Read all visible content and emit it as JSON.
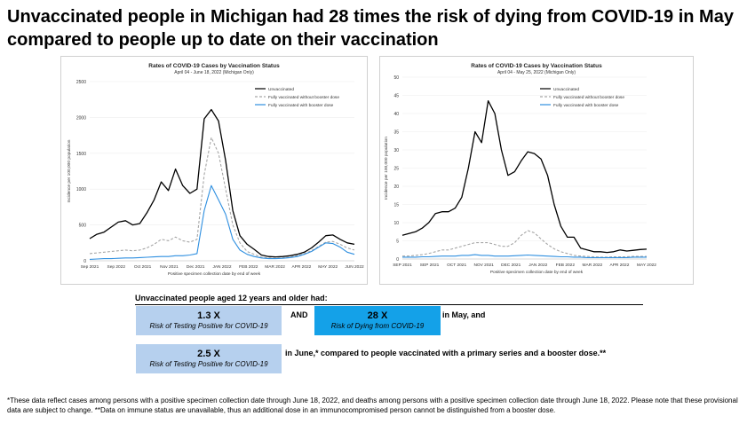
{
  "title": "Unvaccinated people in Michigan had 28 times the risk of dying from COVID-19 in May compared to people up to date on their vaccination",
  "colors": {
    "unvax": "#000000",
    "no_booster": "#a6a6a6",
    "booster": "#2e8fe0",
    "box_light": "#b6d0ee",
    "box_dark": "#14a1e8"
  },
  "chart_data": [
    {
      "type": "line",
      "title": "Rates of COVID-19 Cases by Vaccination Status",
      "subtitle": "April 04 - June 18, 2022 (Michigan Only)",
      "xlabel": "Positive specimen collection date by end of week",
      "ylabel": "Incidence per 100,000 population",
      "ylim": [
        0,
        2500
      ],
      "yticks": [
        "0",
        "500",
        "1000",
        "1500",
        "2000",
        "2500"
      ],
      "xtick_labels": [
        "Sep 2021",
        "Sep 2022",
        "Oct 2021",
        "Nov 2021",
        "Dec 2021",
        "JAN 2022",
        "FEB 2022",
        "MAR 2022",
        "APR 2022",
        "MAY 2022",
        "JUN 2022"
      ],
      "legend_position": "top-right",
      "series": [
        {
          "name": "Unvaccinated",
          "style": "solid",
          "values": [
            310,
            370,
            400,
            470,
            540,
            560,
            500,
            520,
            670,
            850,
            1100,
            980,
            1280,
            1050,
            940,
            1000,
            1980,
            2110,
            1950,
            1400,
            700,
            350,
            230,
            160,
            80,
            60,
            55,
            60,
            70,
            90,
            120,
            180,
            260,
            350,
            360,
            300,
            250,
            230
          ]
        },
        {
          "name": "Fully vaccinated without booster dose",
          "style": "dashed",
          "values": [
            100,
            110,
            120,
            130,
            140,
            150,
            140,
            150,
            180,
            230,
            300,
            280,
            330,
            280,
            260,
            300,
            1200,
            1720,
            1500,
            1000,
            500,
            250,
            130,
            90,
            50,
            40,
            35,
            40,
            50,
            70,
            100,
            140,
            200,
            260,
            270,
            230,
            180,
            150
          ]
        },
        {
          "name": "Fully vaccinated with booster dose",
          "style": "solid",
          "values": [
            20,
            25,
            30,
            30,
            35,
            40,
            40,
            45,
            50,
            55,
            60,
            60,
            70,
            70,
            80,
            100,
            700,
            1050,
            850,
            650,
            300,
            150,
            90,
            60,
            40,
            30,
            30,
            35,
            45,
            60,
            90,
            130,
            190,
            250,
            240,
            190,
            120,
            90
          ]
        }
      ]
    },
    {
      "type": "line",
      "title": "Rates of COVID-19 Cases by Vaccination Status",
      "subtitle": "April 04 - May 25, 2022 (Michigan Only)",
      "xlabel": "Positive specimen collection date by end of week",
      "ylabel": "Incidence per 100,000 population",
      "ylim": [
        0,
        50
      ],
      "yticks": [
        "0",
        "5",
        "10",
        "15",
        "20",
        "25",
        "30",
        "35",
        "40",
        "45",
        "50"
      ],
      "xtick_labels": [
        "SEP 2021",
        "SEP 2021",
        "OCT 2021",
        "NOV 2021",
        "DEC 2021",
        "JAN 2022",
        "FEB 2022",
        "MAR 2022",
        "APR 2022",
        "MAY 2022"
      ],
      "legend_position": "top-right",
      "series": [
        {
          "name": "Unvaccinated",
          "style": "solid",
          "values": [
            6.5,
            7,
            7.5,
            8.5,
            10,
            12.5,
            13,
            13,
            14,
            17,
            25,
            35,
            32,
            43.5,
            40,
            30,
            23,
            24,
            27,
            29.5,
            29,
            27.5,
            23,
            15,
            9,
            6,
            6,
            3,
            2.5,
            2,
            2,
            1.8,
            2,
            2.5,
            2.2,
            2.4,
            2.6,
            2.7
          ]
        },
        {
          "name": "Fully vaccinated without booster dose",
          "style": "dashed",
          "values": [
            0.8,
            0.8,
            1,
            1.2,
            1.5,
            2,
            2.5,
            2.5,
            3,
            3.5,
            4,
            4.5,
            4.5,
            4.5,
            4,
            3.5,
            3.5,
            4.5,
            6.5,
            7.8,
            7.2,
            5.5,
            4,
            2.8,
            2,
            1.5,
            1,
            0.8,
            0.7,
            0.6,
            0.5,
            0.5,
            0.6,
            0.6,
            0.6,
            0.7,
            0.7,
            0.7
          ]
        },
        {
          "name": "Fully vaccinated with booster dose",
          "style": "solid",
          "values": [
            0.5,
            0.5,
            0.5,
            0.6,
            0.6,
            0.7,
            0.8,
            0.8,
            0.8,
            1,
            1,
            1.2,
            1,
            1,
            0.8,
            0.8,
            0.8,
            0.9,
            1,
            1.1,
            1,
            0.9,
            0.8,
            0.7,
            0.6,
            0.6,
            0.5,
            0.5,
            0.4,
            0.4,
            0.4,
            0.4,
            0.4,
            0.4,
            0.4,
            0.5,
            0.5,
            0.5
          ]
        }
      ]
    }
  ],
  "summary": {
    "lead": "Unvaccinated people aged 12 years and older had:",
    "box1_value": "1.3 X",
    "box1_label": "Risk of Testing Positive for COVID-19",
    "and": "AND",
    "box2_value": "28 X",
    "box2_label": "Risk of Dying from COVID-19",
    "in_may": "in May, and",
    "box3_value": "2.5 X",
    "box3_label": "Risk of Testing Positive for COVID-19",
    "in_june": "in June,* compared to people vaccinated with a primary series and a booster dose.**"
  },
  "footnote": "*These data reflect cases among persons with a positive specimen collection date through June 18, 2022, and deaths among persons with a positive specimen collection date through June 18, 2022.  Please note that these provisional data are subject to change. **Data on immune status are unavailable, thus an additional dose in an immunocompromised person cannot be distinguished from a booster dose."
}
